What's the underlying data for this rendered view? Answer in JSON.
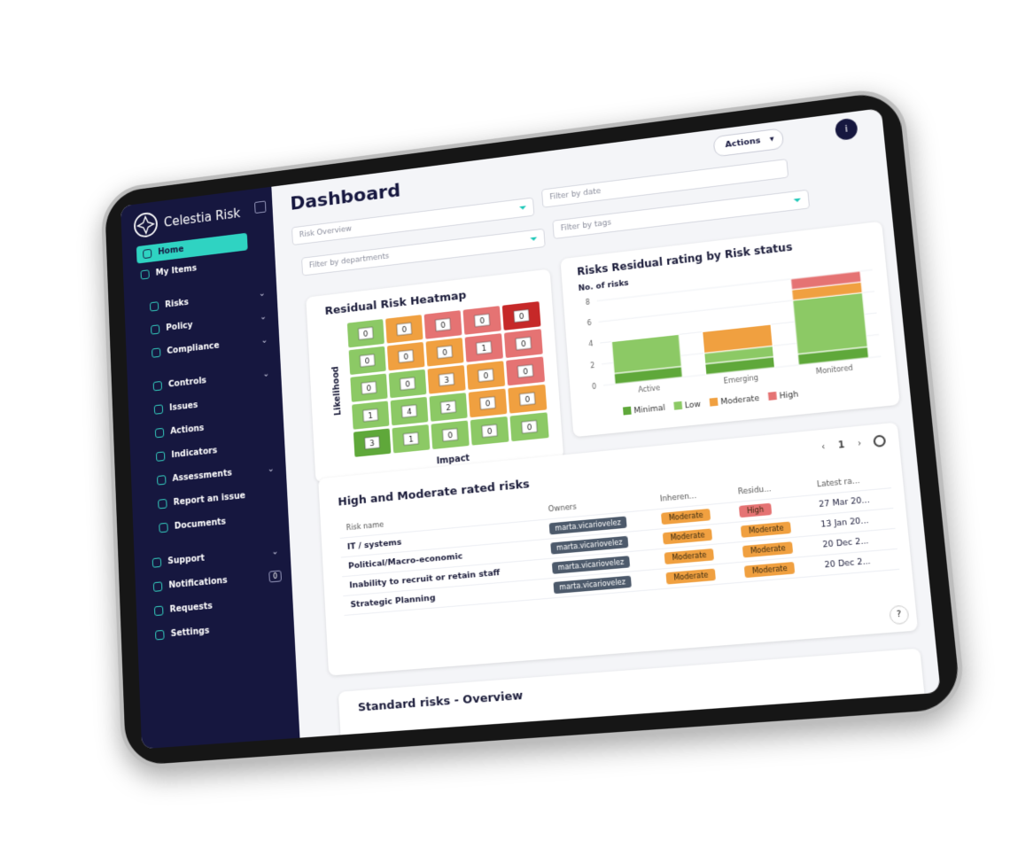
{
  "sidebar": {
    "brand": "Celestia Risk",
    "items": [
      "Home",
      "My Items",
      "Risks",
      "Policy",
      "Compliance",
      "Controls",
      "Issues",
      "Actions",
      "Indicators",
      "Assessments",
      "Report an issue",
      "Documents",
      "Support",
      "Notifications",
      "Requests",
      "Settings"
    ],
    "notifications_count": 0
  },
  "header": {
    "title": "Dashboard",
    "actions": "Actions"
  },
  "filters": [
    "Risk Overview",
    "Filter by date",
    "Filter by departments",
    "Filter by tags"
  ],
  "chart_data": [
    {
      "type": "heatmap",
      "title": "Residual Risk Heatmap",
      "x_label": "Impact",
      "y_label": "Likelihood",
      "values": [
        [
          0,
          0,
          0,
          0,
          0
        ],
        [
          0,
          0,
          0,
          1,
          0
        ],
        [
          0,
          0,
          3,
          0,
          0
        ],
        [
          1,
          4,
          2,
          0,
          0
        ],
        [
          3,
          1,
          0,
          0,
          0
        ]
      ],
      "colors": [
        [
          "#8cc965",
          "#f0a040",
          "#e57373",
          "#e57373",
          "#c62828"
        ],
        [
          "#8cc965",
          "#f0a040",
          "#f0a040",
          "#e57373",
          "#e57373"
        ],
        [
          "#8cc965",
          "#8cc965",
          "#f0a040",
          "#f0a040",
          "#e57373"
        ],
        [
          "#8cc965",
          "#8cc965",
          "#8cc965",
          "#f0a040",
          "#f0a040"
        ],
        [
          "#5fa83a",
          "#8cc965",
          "#8cc965",
          "#8cc965",
          "#8cc965"
        ]
      ]
    },
    {
      "type": "bar",
      "stacked": true,
      "title": "Risks Residual rating by Risk status",
      "y_label": "No. of risks",
      "categories": [
        "Active",
        "Emerging",
        "Monitored"
      ],
      "series": [
        {
          "name": "Minimal",
          "color": "#5fa83a",
          "values": [
            1,
            1,
            1
          ]
        },
        {
          "name": "Low",
          "color": "#8cc965",
          "values": [
            3,
            1,
            5
          ]
        },
        {
          "name": "Moderate",
          "color": "#f0a040",
          "values": [
            0,
            2,
            1
          ]
        },
        {
          "name": "High",
          "color": "#e57373",
          "values": [
            0,
            0,
            1
          ]
        }
      ],
      "ylim": [
        0,
        8
      ],
      "yticks": [
        0,
        2,
        4,
        6,
        8
      ],
      "grid": true,
      "legend": "bottom"
    }
  ],
  "table": {
    "title": "High and Moderate rated risks",
    "page": 1,
    "columns": [
      "Risk name",
      "Owners",
      "Inheren...",
      "Residu...",
      "Latest ra..."
    ],
    "rows": [
      [
        "IT / systems",
        "marta.vicariovelez",
        "Moderate",
        "High",
        "27 Mar 20..."
      ],
      [
        "Political/Macro-economic",
        "marta.vicariovelez",
        "Moderate",
        "Moderate",
        "13 Jan 20..."
      ],
      [
        "Inability to recruit or retain staff",
        "marta.vicariovelez",
        "Moderate",
        "Moderate",
        "20 Dec 2..."
      ],
      [
        "Strategic Planning",
        "marta.vicariovelez",
        "Moderate",
        "Moderate",
        "20 Dec 2..."
      ]
    ],
    "badge_colors": {
      "Moderate": "#f0a040",
      "High": "#e57373"
    }
  },
  "standard_risks": {
    "title": "Standard risks - Overview"
  }
}
